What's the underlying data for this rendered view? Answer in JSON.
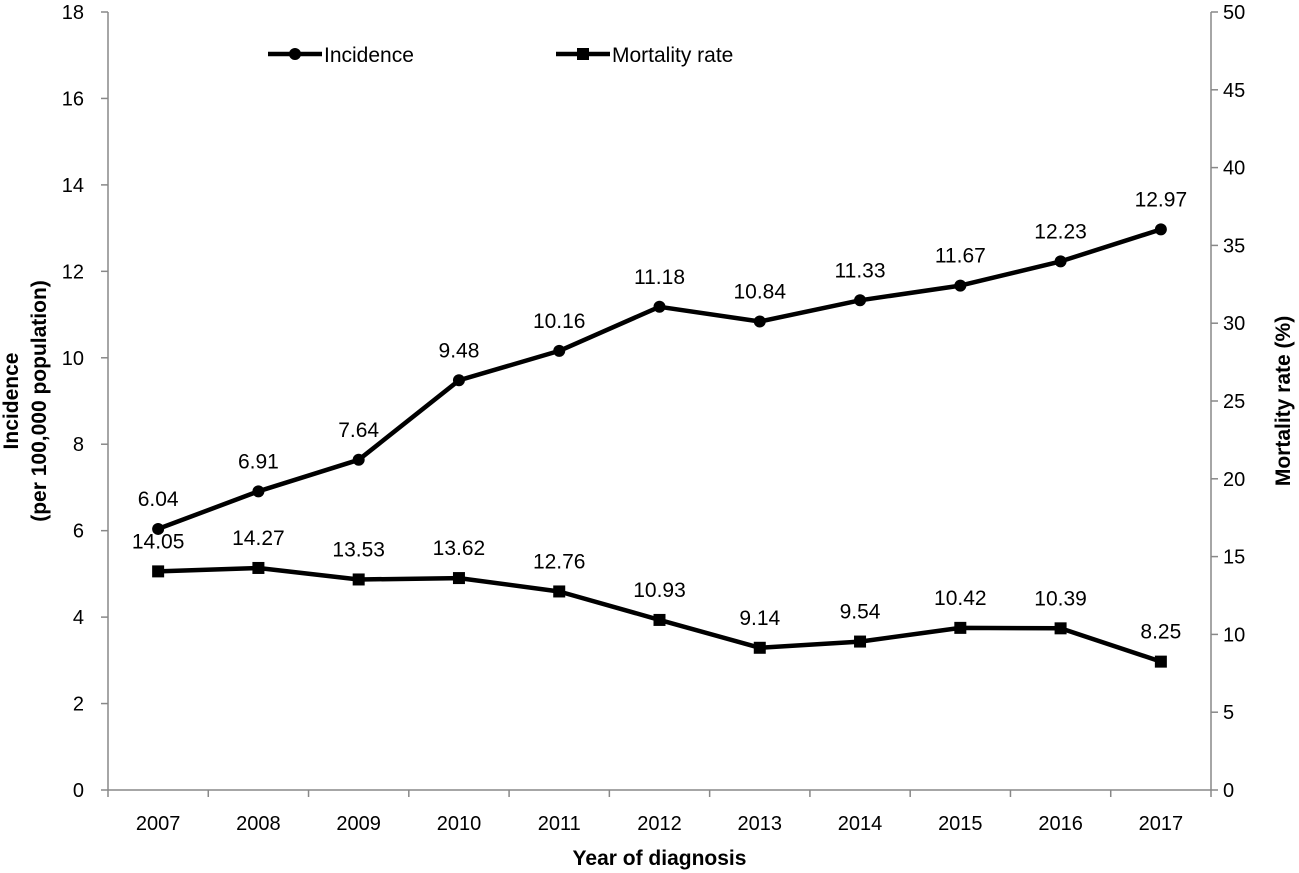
{
  "chart_data": {
    "type": "line",
    "categories": [
      "2007",
      "2008",
      "2009",
      "2010",
      "2011",
      "2012",
      "2013",
      "2014",
      "2015",
      "2016",
      "2017"
    ],
    "series": [
      {
        "name": "Incidence",
        "axis": "left",
        "marker": "circle",
        "values": [
          6.04,
          6.91,
          7.64,
          9.48,
          10.16,
          11.18,
          10.84,
          11.33,
          11.67,
          12.23,
          12.97
        ],
        "labels": [
          "6.04",
          "6.91",
          "7.64",
          "9.48",
          "10.16",
          "11.18",
          "10.84",
          "11.33",
          "11.67",
          "12.23",
          "12.97"
        ]
      },
      {
        "name": "Mortality rate",
        "axis": "right",
        "marker": "square",
        "values": [
          14.05,
          14.27,
          13.53,
          13.62,
          12.76,
          10.93,
          9.14,
          9.54,
          10.42,
          10.39,
          8.25
        ],
        "labels": [
          "14.05",
          "14.27",
          "13.53",
          "13.62",
          "12.76",
          "10.93",
          "9.14",
          "9.54",
          "10.42",
          "10.39",
          "8.25"
        ]
      }
    ],
    "xlabel": "Year of diagnosis",
    "ylabel_left": [
      "Incidence",
      "(per 100,000 population)"
    ],
    "ylabel_right": "Mortality rate (%)",
    "ylim_left": [
      0,
      18
    ],
    "yticks_left": [
      0,
      2,
      4,
      6,
      8,
      10,
      12,
      14,
      16,
      18
    ],
    "ylim_right": [
      0,
      50
    ],
    "yticks_right": [
      0,
      5,
      10,
      15,
      20,
      25,
      30,
      35,
      40,
      45,
      50
    ],
    "grid": false,
    "legend_position": "top-left"
  }
}
